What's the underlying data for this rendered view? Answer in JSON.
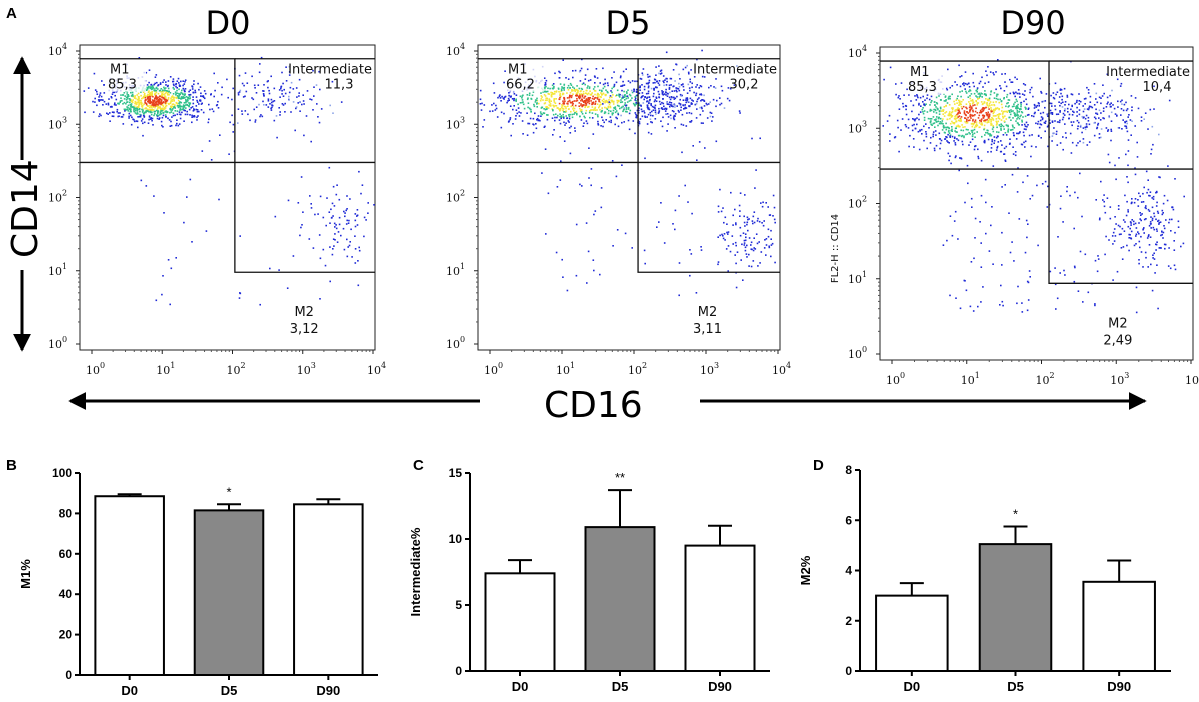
{
  "colors": {
    "bar_default": "#ffffff",
    "bar_highlight": "#888888",
    "density_low": "#1f2ad6",
    "density_mid": "#30c08a",
    "density_high": "#f5e63a",
    "density_peak": "#e8401a"
  },
  "panel_labels": {
    "a": "A",
    "b": "B",
    "c": "C",
    "d": "D"
  },
  "flow": {
    "y_axis_label": "CD14",
    "x_axis_label": "CD16",
    "d90_axis_label": "FL2-H :: CD14",
    "tick_base": "10",
    "tick_exponents": [
      "0",
      "1",
      "2",
      "3",
      "4"
    ],
    "plots": [
      {
        "title": "D0",
        "gates": {
          "m1_label": "M1",
          "m1": "85,3",
          "inter_label": "Intermediate",
          "inter": "11,3",
          "m2_label": "M2",
          "m2": "3,12"
        }
      },
      {
        "title": "D5",
        "gates": {
          "m1_label": "M1",
          "m1": "66,2",
          "inter_label": "Intermediate",
          "inter": "30,2",
          "m2_label": "M2",
          "m2": "3,11"
        }
      },
      {
        "title": "D90",
        "gates": {
          "m1_label": "M1",
          "m1": "85,3",
          "inter_label": "Intermediate",
          "inter": "10,4",
          "m2_label": "M2",
          "m2": "2,49"
        }
      }
    ]
  },
  "chart_data": [
    {
      "type": "bar",
      "panel": "B",
      "ylabel": "M1%",
      "xlabel": "",
      "categories": [
        "D0",
        "D5",
        "D90"
      ],
      "values": [
        88.5,
        81.5,
        84.5
      ],
      "errors": [
        1.0,
        3.0,
        2.5
      ],
      "highlight": [
        false,
        true,
        false
      ],
      "significance": [
        "",
        "*",
        ""
      ],
      "ylim": [
        0,
        100
      ],
      "yticks": [
        0,
        20,
        40,
        60,
        80,
        100
      ]
    },
    {
      "type": "bar",
      "panel": "C",
      "ylabel": "Intermediate%",
      "xlabel": "",
      "categories": [
        "D0",
        "D5",
        "D90"
      ],
      "values": [
        7.4,
        10.9,
        9.5
      ],
      "errors": [
        1.0,
        2.8,
        1.5
      ],
      "highlight": [
        false,
        true,
        false
      ],
      "significance": [
        "",
        "**",
        ""
      ],
      "ylim": [
        0,
        15
      ],
      "yticks": [
        0,
        5,
        10,
        15
      ]
    },
    {
      "type": "bar",
      "panel": "D",
      "ylabel": "M2%",
      "xlabel": "",
      "categories": [
        "D0",
        "D5",
        "D90"
      ],
      "values": [
        3.0,
        5.05,
        3.55
      ],
      "errors": [
        0.5,
        0.7,
        0.85
      ],
      "highlight": [
        false,
        true,
        false
      ],
      "significance": [
        "",
        "*",
        ""
      ],
      "ylim": [
        0,
        8
      ],
      "yticks": [
        0,
        2,
        4,
        6,
        8
      ]
    }
  ]
}
